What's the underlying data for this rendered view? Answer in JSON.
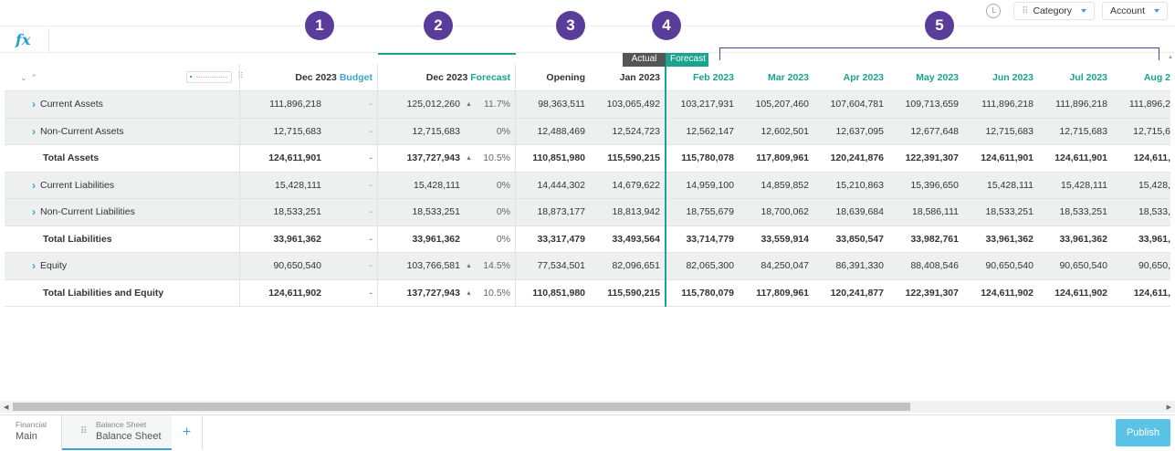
{
  "toolbar": {
    "history_icon": "history-icon",
    "category_label": "Category",
    "account_label": "Account"
  },
  "formula": {
    "fx_label": "fx"
  },
  "markers": [
    "1",
    "2",
    "3",
    "4",
    "5"
  ],
  "tags": {
    "actual": "Actual",
    "forecast": "Forecast"
  },
  "columns": {
    "budget": {
      "month": "Dec 2023",
      "sub": "Budget"
    },
    "forecast": {
      "month": "Dec 2023",
      "sub": "Forecast"
    },
    "opening": "Opening",
    "months": [
      "Jan 2023",
      "Feb 2023",
      "Mar 2023",
      "Apr 2023",
      "May 2023",
      "Jun 2023",
      "Jul 2023",
      "Aug 2"
    ]
  },
  "rows": [
    {
      "label": "Current Assets",
      "expandable": true,
      "total": false,
      "budget": "111,896,218",
      "budget_var": "-",
      "forecast": "125,012,260",
      "fc_up": true,
      "fc_pct": "11.7%",
      "opening": "98,363,511",
      "months": [
        "103,065,492",
        "103,217,931",
        "105,207,460",
        "107,604,781",
        "109,713,659",
        "111,896,218",
        "111,896,218",
        "111,896,2"
      ]
    },
    {
      "label": "Non-Current Assets",
      "expandable": true,
      "total": false,
      "budget": "12,715,683",
      "budget_var": "-",
      "forecast": "12,715,683",
      "fc_up": false,
      "fc_pct": "0%",
      "opening": "12,488,469",
      "months": [
        "12,524,723",
        "12,562,147",
        "12,602,501",
        "12,637,095",
        "12,677,648",
        "12,715,683",
        "12,715,683",
        "12,715,6"
      ]
    },
    {
      "label": "Total Assets",
      "expandable": false,
      "total": true,
      "budget": "124,611,901",
      "budget_var": "-",
      "forecast": "137,727,943",
      "fc_up": true,
      "fc_pct": "10.5%",
      "opening": "110,851,980",
      "months": [
        "115,590,215",
        "115,780,078",
        "117,809,961",
        "120,241,876",
        "122,391,307",
        "124,611,901",
        "124,611,901",
        "124,611,"
      ]
    },
    {
      "label": "Current Liabilities",
      "expandable": true,
      "total": false,
      "budget": "15,428,111",
      "budget_var": "-",
      "forecast": "15,428,111",
      "fc_up": false,
      "fc_pct": "0%",
      "opening": "14,444,302",
      "months": [
        "14,679,622",
        "14,959,100",
        "14,859,852",
        "15,210,863",
        "15,396,650",
        "15,428,111",
        "15,428,111",
        "15,428,"
      ]
    },
    {
      "label": "Non-Current Liabilities",
      "expandable": true,
      "total": false,
      "budget": "18,533,251",
      "budget_var": "-",
      "forecast": "18,533,251",
      "fc_up": false,
      "fc_pct": "0%",
      "opening": "18,873,177",
      "months": [
        "18,813,942",
        "18,755,679",
        "18,700,062",
        "18,639,684",
        "18,586,111",
        "18,533,251",
        "18,533,251",
        "18,533,"
      ]
    },
    {
      "label": "Total Liabilities",
      "expandable": false,
      "total": true,
      "budget": "33,961,362",
      "budget_var": "-",
      "forecast": "33,961,362",
      "fc_up": false,
      "fc_pct": "0%",
      "opening": "33,317,479",
      "months": [
        "33,493,564",
        "33,714,779",
        "33,559,914",
        "33,850,547",
        "33,982,761",
        "33,961,362",
        "33,961,362",
        "33,961,"
      ]
    },
    {
      "label": "Equity",
      "expandable": true,
      "total": false,
      "budget": "90,650,540",
      "budget_var": "-",
      "forecast": "103,766,581",
      "fc_up": true,
      "fc_pct": "14.5%",
      "opening": "77,534,501",
      "months": [
        "82,096,651",
        "82,065,300",
        "84,250,047",
        "86,391,330",
        "88,408,546",
        "90,650,540",
        "90,650,540",
        "90,650,"
      ]
    },
    {
      "label": "Total Liabilities and Equity",
      "expandable": false,
      "total": true,
      "budget": "124,611,902",
      "budget_var": "-",
      "forecast": "137,727,943",
      "fc_up": true,
      "fc_pct": "10.5%",
      "opening": "110,851,980",
      "months": [
        "115,590,215",
        "115,780,079",
        "117,809,961",
        "120,241,877",
        "122,391,307",
        "124,611,902",
        "124,611,902",
        "124,611,"
      ]
    }
  ],
  "tabs": [
    {
      "small": "Financial",
      "main": "Main"
    },
    {
      "small": "Balance Sheet",
      "main": "Balance Sheet"
    }
  ],
  "add_tab_label": "+",
  "publish_label": "Publish",
  "colors": {
    "accent_blue": "#3aa6cf",
    "forecast_green": "#1aa38e",
    "marker_purple": "#5a3d9a"
  }
}
